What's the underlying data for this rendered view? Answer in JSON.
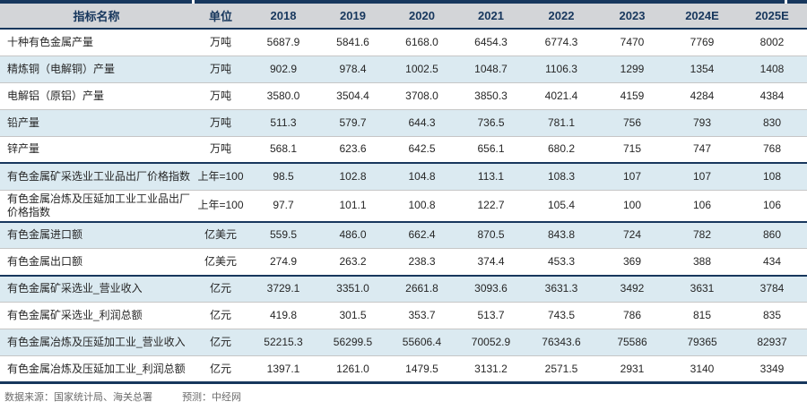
{
  "colors": {
    "navy": "#17375d",
    "header_bg": "#d3d5d8",
    "stripe_blue": "#dbeaf1",
    "row_border": "#c6c6c6",
    "text": "#262626",
    "footer_text": "#6b6b6b"
  },
  "chart_data": {
    "type": "table",
    "title": "",
    "columns": [
      "指标名称",
      "单位",
      "2018",
      "2019",
      "2020",
      "2021",
      "2022",
      "2023",
      "2024E",
      "2025E"
    ],
    "rows": [
      {
        "name": "十种有色金属产量",
        "unit": "万吨",
        "values": [
          "5687.9",
          "5841.6",
          "6168.0",
          "6454.3",
          "6774.3",
          "7470",
          "7769",
          "8002"
        ],
        "section_start": false
      },
      {
        "name": "精炼铜（电解铜）产量",
        "unit": "万吨",
        "values": [
          "902.9",
          "978.4",
          "1002.5",
          "1048.7",
          "1106.3",
          "1299",
          "1354",
          "1408"
        ],
        "section_start": false
      },
      {
        "name": "电解铝（原铝）产量",
        "unit": "万吨",
        "values": [
          "3580.0",
          "3504.4",
          "3708.0",
          "3850.3",
          "4021.4",
          "4159",
          "4284",
          "4384"
        ],
        "section_start": false
      },
      {
        "name": "铅产量",
        "unit": "万吨",
        "values": [
          "511.3",
          "579.7",
          "644.3",
          "736.5",
          "781.1",
          "756",
          "793",
          "830"
        ],
        "section_start": false
      },
      {
        "name": "锌产量",
        "unit": "万吨",
        "values": [
          "568.1",
          "623.6",
          "642.5",
          "656.1",
          "680.2",
          "715",
          "747",
          "768"
        ],
        "section_start": false
      },
      {
        "name": "有色金属矿采选业工业品出厂价格指数",
        "unit": "上年=100",
        "values": [
          "98.5",
          "102.8",
          "104.8",
          "113.1",
          "108.3",
          "107",
          "107",
          "108"
        ],
        "section_start": true
      },
      {
        "name": "有色金属冶炼及压延加工业工业品出厂价格指数",
        "unit": "上年=100",
        "values": [
          "97.7",
          "101.1",
          "100.8",
          "122.7",
          "105.4",
          "100",
          "106",
          "106"
        ],
        "section_start": false
      },
      {
        "name": "有色金属进口额",
        "unit": "亿美元",
        "values": [
          "559.5",
          "486.0",
          "662.4",
          "870.5",
          "843.8",
          "724",
          "782",
          "860"
        ],
        "section_start": true
      },
      {
        "name": "有色金属出口额",
        "unit": "亿美元",
        "values": [
          "274.9",
          "263.2",
          "238.3",
          "374.4",
          "453.3",
          "369",
          "388",
          "434"
        ],
        "section_start": false
      },
      {
        "name": "有色金属矿采选业_营业收入",
        "unit": "亿元",
        "values": [
          "3729.1",
          "3351.0",
          "2661.8",
          "3093.6",
          "3631.3",
          "3492",
          "3631",
          "3784"
        ],
        "section_start": true
      },
      {
        "name": "有色金属矿采选业_利润总额",
        "unit": "亿元",
        "values": [
          "419.8",
          "301.5",
          "353.7",
          "513.7",
          "743.5",
          "786",
          "815",
          "835"
        ],
        "section_start": false
      },
      {
        "name": "有色金属冶炼及压延加工业_营业收入",
        "unit": "亿元",
        "values": [
          "52215.3",
          "56299.5",
          "55606.4",
          "70052.9",
          "76343.6",
          "75586",
          "79365",
          "82937"
        ],
        "section_start": false
      },
      {
        "name": "有色金属冶炼及压延加工业_利润总额",
        "unit": "亿元",
        "values": [
          "1397.1",
          "1261.0",
          "1479.5",
          "3131.2",
          "2571.5",
          "2931",
          "3140",
          "3349"
        ],
        "section_start": false
      }
    ]
  },
  "footer": {
    "source": "数据来源：国家统计局、海关总署",
    "forecast": "预测：中经网"
  }
}
